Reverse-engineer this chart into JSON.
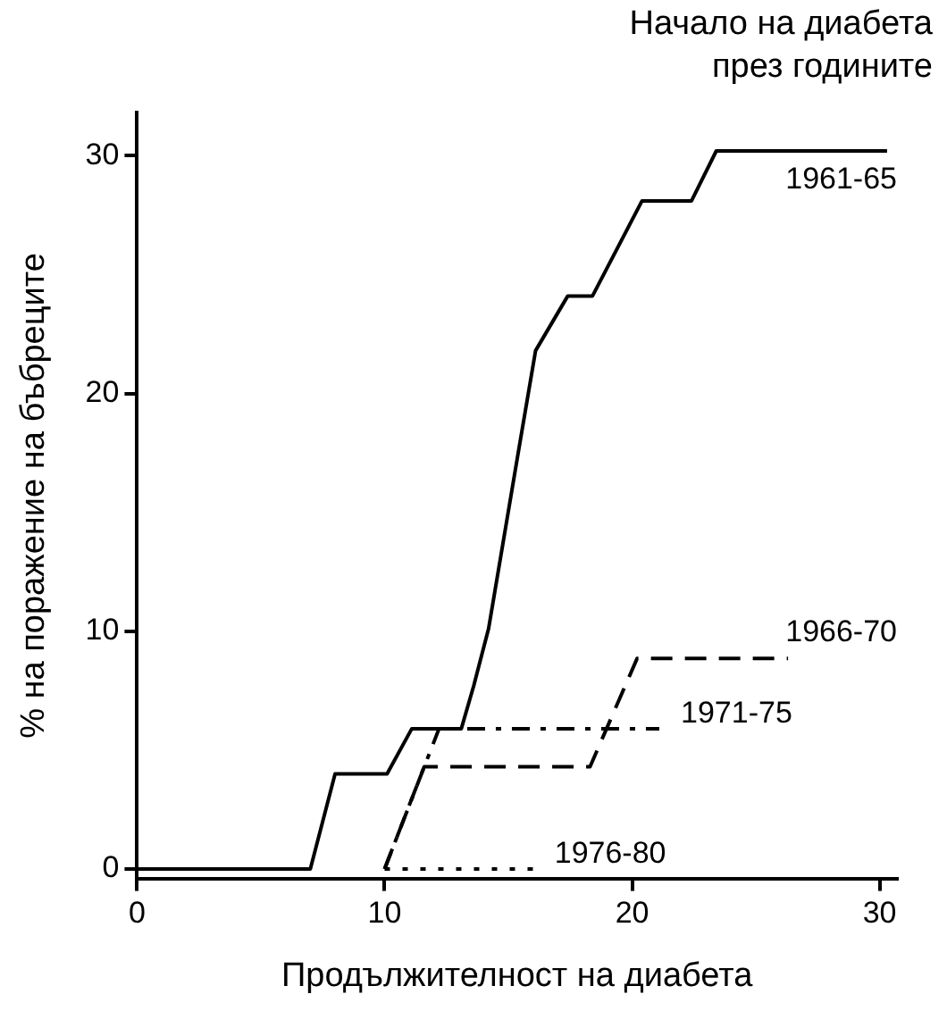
{
  "chart_data": {
    "type": "line",
    "legend_title": "Начало на диабета през годините",
    "xlabel": "Продължителност на диабета",
    "ylabel": "% на поражение на бъбреците",
    "xlim": [
      0,
      30.7
    ],
    "xticks": [
      0,
      10,
      20,
      30
    ],
    "ylim": [
      -0.4,
      31.8
    ],
    "yticks": [
      0,
      10,
      20,
      30
    ],
    "grid": false,
    "legend": false,
    "marker": "none",
    "series": [
      {
        "name": "1961-65",
        "color": "#000000",
        "line_style": "solid",
        "x": [
          0,
          7,
          8,
          10.1,
          11.1,
          13.1,
          13.6,
          14.2,
          15.3,
          16.1,
          17.4,
          18.4,
          20.4,
          22.4,
          23.4,
          30.3
        ],
        "values": [
          0,
          0,
          4,
          4,
          5.9,
          5.9,
          7.7,
          10.1,
          16.9,
          21.8,
          24.1,
          24.1,
          28.1,
          28.1,
          30.2,
          30.2
        ]
      },
      {
        "name": "1966-70",
        "color": "#000000",
        "line_style": "dashed",
        "x": [
          10,
          11.6,
          18.3,
          20.2,
          26.3
        ],
        "values": [
          0,
          4.3,
          4.3,
          8.85,
          8.85
        ]
      },
      {
        "name": "1971-75",
        "color": "#000000",
        "line_style": "dashdot",
        "x": [
          10,
          12.2,
          21.1
        ],
        "values": [
          0,
          5.9,
          5.9
        ]
      },
      {
        "name": "1976-80",
        "color": "#000000",
        "line_style": "dotted",
        "x": [
          10,
          16
        ],
        "values": [
          0,
          0
        ]
      }
    ]
  }
}
